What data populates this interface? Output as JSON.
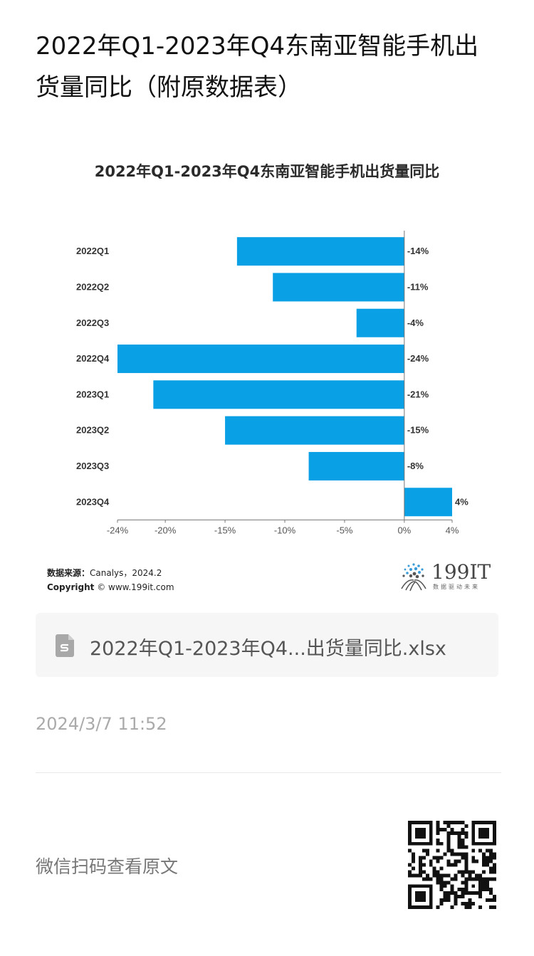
{
  "article": {
    "title": "2022年Q1-2023年Q4东南亚智能手机出货量同比（附原数据表）"
  },
  "chart_data": {
    "type": "bar",
    "orientation": "horizontal",
    "title": "2022年Q1-2023年Q4东南亚智能手机出货量同比",
    "categories": [
      "2022Q1",
      "2022Q2",
      "2022Q3",
      "2022Q4",
      "2023Q1",
      "2023Q2",
      "2023Q3",
      "2023Q4"
    ],
    "values": [
      -14,
      -11,
      -4,
      -24,
      -21,
      -15,
      -8,
      4
    ],
    "data_labels": [
      "-14%",
      "-11%",
      "-4%",
      "-24%",
      "-21%",
      "-15%",
      "-8%",
      "4%"
    ],
    "xlim": [
      -24,
      4
    ],
    "xticks": [
      -24,
      -20,
      -15,
      -10,
      -5,
      0,
      4
    ],
    "xtick_labels": [
      "-24%",
      "-20%",
      "-15%",
      "-10%",
      "-5%",
      "0%",
      "4%"
    ],
    "xlabel": "",
    "ylabel": "",
    "bar_color": "#0aa0e6",
    "grid": false,
    "legend": "none"
  },
  "source": {
    "label": "数据来源：",
    "text": "Canalys，2024.2",
    "copyright_label": "Copyright",
    "copyright_text": "© www.199it.com"
  },
  "brand": {
    "name": "199IT",
    "slogan": "数据驱动未来"
  },
  "attachment": {
    "icon": "spreadsheet-file-icon",
    "filename": "2022年Q1-2023年Q4...出货量同比.xlsx"
  },
  "meta": {
    "timestamp": "2024/3/7 11:52"
  },
  "footer": {
    "qr_hint": "微信扫码查看原文",
    "qr_icon": "qr-code-icon"
  }
}
